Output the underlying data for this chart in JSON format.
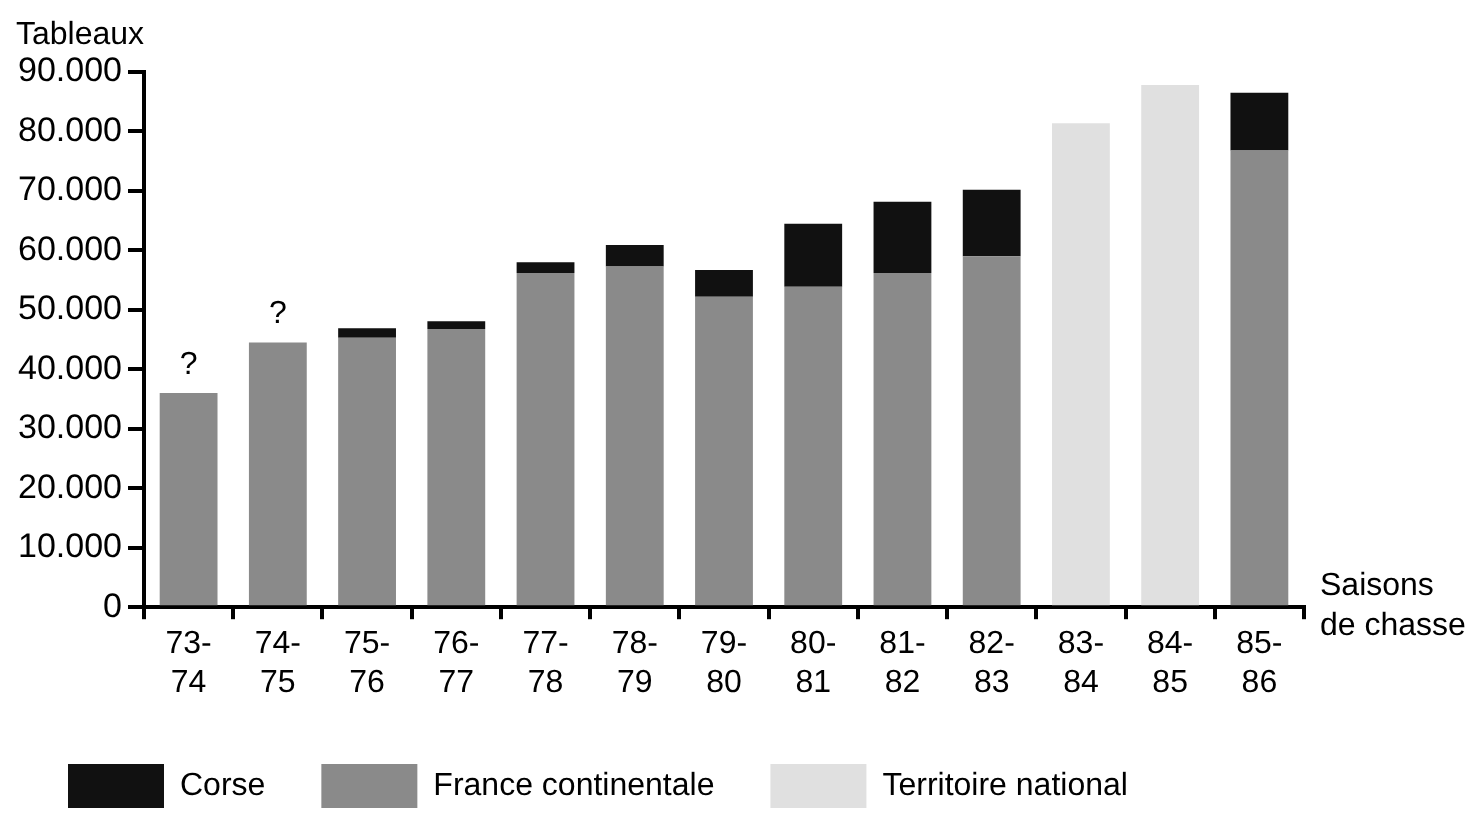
{
  "chart_data": {
    "type": "bar",
    "stacked": true,
    "ylabel": "Tableaux",
    "xlabel": "Saisons de chasse",
    "categories": [
      "73-74",
      "74-75",
      "75-76",
      "76-77",
      "77-78",
      "78-79",
      "79-80",
      "80-81",
      "81-82",
      "82-83",
      "83-84",
      "84-85",
      "85-86"
    ],
    "series": [
      {
        "name": "France continentale",
        "color": "#8a8a8a",
        "values": [
          36000,
          44500,
          45300,
          46800,
          56200,
          57300,
          52200,
          53900,
          56200,
          59000,
          null,
          null,
          76800
        ]
      },
      {
        "name": "Corse",
        "color": "#111111",
        "values": [
          null,
          null,
          1600,
          1300,
          1800,
          3600,
          4500,
          10600,
          12000,
          11200,
          null,
          null,
          9700
        ]
      },
      {
        "name": "Territoire national",
        "color": "#e0e0e0",
        "values": [
          null,
          null,
          null,
          null,
          null,
          null,
          null,
          null,
          null,
          null,
          81400,
          87800,
          null
        ]
      }
    ],
    "ylim": [
      0,
      90000
    ],
    "yticks": [
      {
        "value": 0,
        "label": "0"
      },
      {
        "value": 10000,
        "label": "10.000"
      },
      {
        "value": 20000,
        "label": "20.000"
      },
      {
        "value": 30000,
        "label": "30.000"
      },
      {
        "value": 40000,
        "label": "40.000"
      },
      {
        "value": 50000,
        "label": "50.000"
      },
      {
        "value": 60000,
        "label": "60.000"
      },
      {
        "value": 70000,
        "label": "70.000"
      },
      {
        "value": 80000,
        "label": "80.000"
      },
      {
        "value": 90000,
        "label": "90.000"
      }
    ],
    "annotations": [
      {
        "text": "?",
        "x": "73-74",
        "y": 36000
      },
      {
        "text": "?",
        "x": "74-75",
        "y": 44500
      }
    ],
    "grid": false,
    "legend": "bottom"
  }
}
